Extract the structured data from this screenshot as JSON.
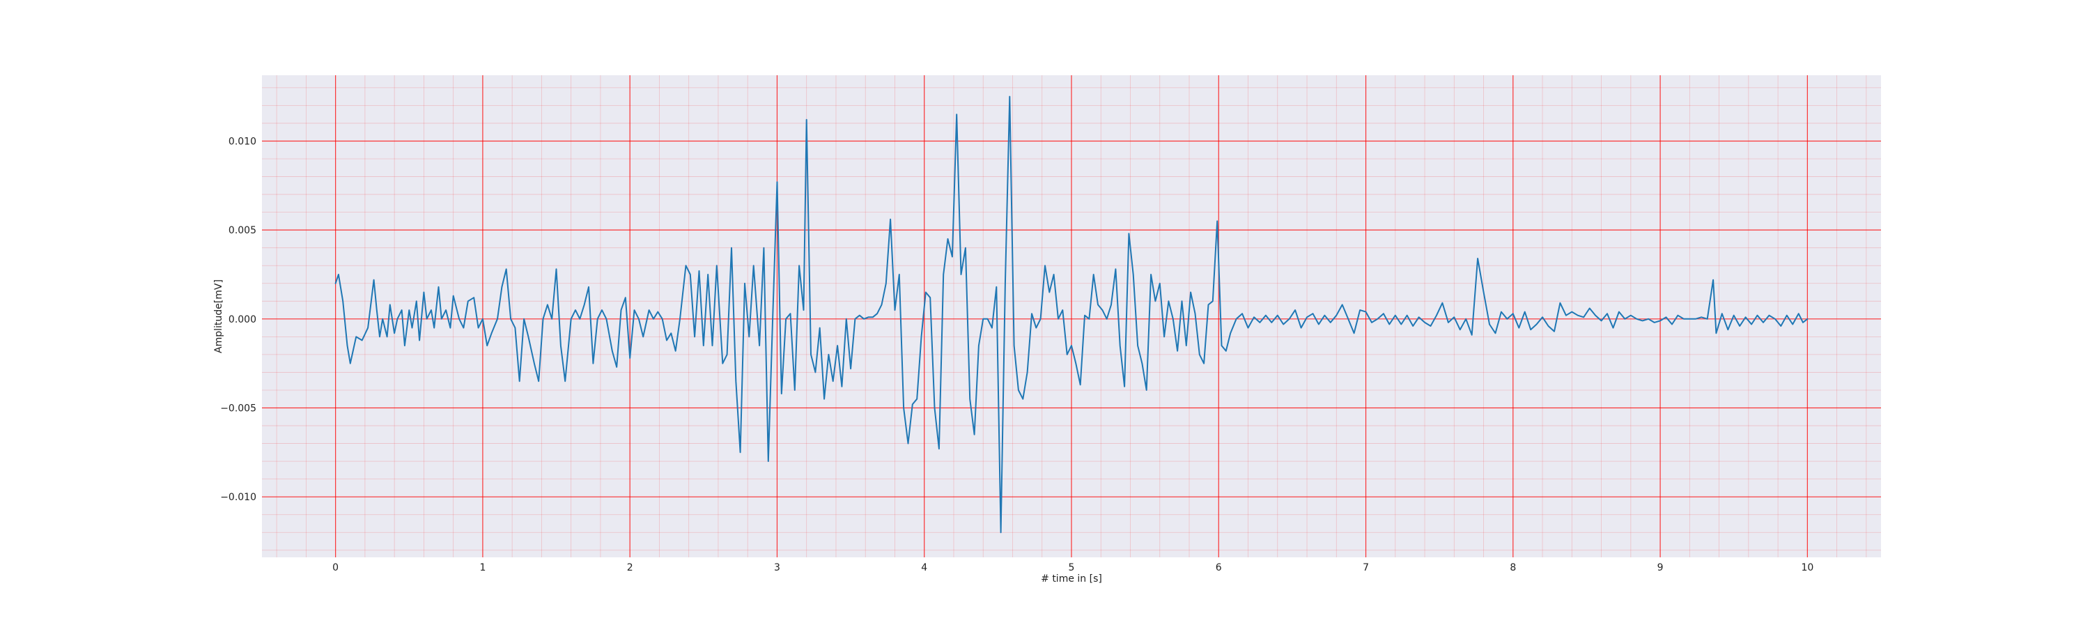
{
  "chart_data": {
    "type": "line",
    "xlabel": "# time in [s]",
    "ylabel": "Amplitude[mV]",
    "xlim": [
      -0.5,
      10.5
    ],
    "ylim": [
      -0.0134,
      0.0137
    ],
    "xticks": [
      0,
      1,
      2,
      3,
      4,
      5,
      6,
      7,
      8,
      9,
      10
    ],
    "xtick_labels": [
      "0",
      "1",
      "2",
      "3",
      "4",
      "5",
      "6",
      "7",
      "8",
      "9",
      "10"
    ],
    "yticks": [
      -0.01,
      -0.005,
      0.0,
      0.005,
      0.01
    ],
    "ytick_labels": [
      "−0.010",
      "−0.005",
      "0.000",
      "0.005",
      "0.010"
    ],
    "grid": {
      "major": true,
      "minor": true
    },
    "background": "#eaeaf2",
    "grid_color": "#ff0000",
    "series": [
      {
        "color": "#1f77b4",
        "x": [
          0.0,
          0.02,
          0.05,
          0.08,
          0.1,
          0.14,
          0.18,
          0.22,
          0.26,
          0.28,
          0.3,
          0.32,
          0.35,
          0.37,
          0.4,
          0.42,
          0.45,
          0.47,
          0.5,
          0.52,
          0.55,
          0.57,
          0.6,
          0.62,
          0.65,
          0.67,
          0.7,
          0.72,
          0.75,
          0.78,
          0.8,
          0.84,
          0.87,
          0.9,
          0.94,
          0.97,
          1.0,
          1.03,
          1.06,
          1.1,
          1.13,
          1.16,
          1.19,
          1.22,
          1.25,
          1.28,
          1.31,
          1.35,
          1.38,
          1.41,
          1.44,
          1.47,
          1.5,
          1.53,
          1.56,
          1.6,
          1.63,
          1.66,
          1.69,
          1.72,
          1.75,
          1.78,
          1.81,
          1.84,
          1.88,
          1.91,
          1.94,
          1.97,
          2.0,
          2.03,
          2.06,
          2.09,
          2.13,
          2.16,
          2.19,
          2.22,
          2.25,
          2.28,
          2.31,
          2.34,
          2.38,
          2.41,
          2.44,
          2.47,
          2.5,
          2.53,
          2.56,
          2.59,
          2.63,
          2.66,
          2.69,
          2.72,
          2.75,
          2.78,
          2.81,
          2.84,
          2.88,
          2.91,
          2.94,
          2.97,
          3.0,
          3.03,
          3.06,
          3.09,
          3.12,
          3.15,
          3.18,
          3.2,
          3.23,
          3.26,
          3.29,
          3.32,
          3.35,
          3.38,
          3.41,
          3.44,
          3.47,
          3.5,
          3.53,
          3.56,
          3.59,
          3.62,
          3.65,
          3.68,
          3.71,
          3.74,
          3.77,
          3.8,
          3.83,
          3.86,
          3.89,
          3.92,
          3.95,
          3.98,
          4.01,
          4.04,
          4.07,
          4.1,
          4.13,
          4.16,
          4.19,
          4.22,
          4.25,
          4.28,
          4.31,
          4.34,
          4.37,
          4.4,
          4.43,
          4.46,
          4.49,
          4.52,
          4.55,
          4.58,
          4.61,
          4.64,
          4.67,
          4.7,
          4.73,
          4.76,
          4.79,
          4.82,
          4.85,
          4.88,
          4.91,
          4.94,
          4.97,
          5.0,
          5.03,
          5.06,
          5.09,
          5.12,
          5.15,
          5.18,
          5.21,
          5.24,
          5.27,
          5.3,
          5.33,
          5.36,
          5.39,
          5.42,
          5.45,
          5.48,
          5.51,
          5.54,
          5.57,
          5.6,
          5.63,
          5.66,
          5.69,
          5.72,
          5.75,
          5.78,
          5.81,
          5.84,
          5.87,
          5.9,
          5.93,
          5.96,
          5.99,
          6.02,
          6.05,
          6.08,
          6.12,
          6.16,
          6.2,
          6.24,
          6.28,
          6.32,
          6.36,
          6.4,
          6.44,
          6.48,
          6.52,
          6.56,
          6.6,
          6.64,
          6.68,
          6.72,
          6.76,
          6.8,
          6.84,
          6.88,
          6.92,
          6.96,
          7.0,
          7.04,
          7.08,
          7.12,
          7.16,
          7.2,
          7.24,
          7.28,
          7.32,
          7.36,
          7.4,
          7.44,
          7.48,
          7.52,
          7.56,
          7.6,
          7.64,
          7.68,
          7.72,
          7.76,
          7.8,
          7.84,
          7.88,
          7.92,
          7.96,
          8.0,
          8.04,
          8.08,
          8.12,
          8.16,
          8.2,
          8.24,
          8.28,
          8.32,
          8.36,
          8.4,
          8.44,
          8.48,
          8.52,
          8.56,
          8.6,
          8.64,
          8.68,
          8.72,
          8.76,
          8.8,
          8.84,
          8.88,
          8.92,
          8.96,
          9.0,
          9.04,
          9.08,
          9.12,
          9.16,
          9.2,
          9.24,
          9.28,
          9.32,
          9.36,
          9.38,
          9.42,
          9.46,
          9.5,
          9.54,
          9.58,
          9.62,
          9.66,
          9.7,
          9.74,
          9.78,
          9.82,
          9.86,
          9.9,
          9.94,
          9.97,
          10.0
        ],
        "y": [
          0.002,
          0.0025,
          0.001,
          -0.0015,
          -0.0025,
          -0.001,
          -0.0012,
          -0.0005,
          0.0022,
          0.0005,
          -0.001,
          0.0,
          -0.001,
          0.0008,
          -0.0008,
          0.0,
          0.0005,
          -0.0015,
          0.0005,
          -0.0005,
          0.001,
          -0.0012,
          0.0015,
          0.0,
          0.0005,
          -0.0005,
          0.0018,
          0.0,
          0.0005,
          -0.0005,
          0.0013,
          0.0,
          -0.0005,
          0.001,
          0.0012,
          -0.0005,
          0.0,
          -0.0015,
          -0.0008,
          0.0,
          0.0018,
          0.0028,
          0.0,
          -0.0005,
          -0.0035,
          0.0,
          -0.001,
          -0.0025,
          -0.0035,
          0.0,
          0.0008,
          0.0,
          0.0028,
          -0.0015,
          -0.0035,
          0.0,
          0.0005,
          0.0,
          0.0008,
          0.0018,
          -0.0025,
          0.0,
          0.0005,
          0.0,
          -0.0018,
          -0.0027,
          0.0005,
          0.0012,
          -0.0022,
          0.0005,
          0.0,
          -0.001,
          0.0005,
          0.0,
          0.0004,
          0.0,
          -0.0012,
          -0.0008,
          -0.0018,
          0.0,
          0.003,
          0.0025,
          -0.001,
          0.0027,
          -0.0015,
          0.0025,
          -0.0015,
          0.003,
          -0.0025,
          -0.002,
          0.004,
          -0.0035,
          -0.0075,
          0.002,
          -0.001,
          0.003,
          -0.0015,
          0.004,
          -0.008,
          0.0,
          0.0077,
          -0.0042,
          0.0,
          0.0003,
          -0.004,
          0.003,
          0.0005,
          0.0112,
          -0.002,
          -0.003,
          -0.0005,
          -0.0045,
          -0.002,
          -0.0035,
          -0.0015,
          -0.0038,
          0.0,
          -0.0028,
          0.0,
          0.0002,
          0.0,
          0.0001,
          0.0001,
          0.0003,
          0.0008,
          0.002,
          0.0056,
          0.0005,
          0.0025,
          -0.005,
          -0.007,
          -0.0048,
          -0.0045,
          -0.001,
          0.0015,
          0.0012,
          -0.005,
          -0.0073,
          0.0025,
          0.0045,
          0.0035,
          0.0115,
          0.0025,
          0.004,
          -0.0045,
          -0.0065,
          -0.0015,
          0.0,
          0.0,
          -0.0005,
          0.0018,
          -0.012,
          0.002,
          0.0125,
          -0.0015,
          -0.004,
          -0.0045,
          -0.003,
          0.0003,
          -0.0005,
          0.0,
          0.003,
          0.0015,
          0.0025,
          0.0,
          0.0005,
          -0.002,
          -0.0015,
          -0.0025,
          -0.0037,
          0.0002,
          0.0,
          0.0025,
          0.0008,
          0.0005,
          0.0,
          0.0008,
          0.0028,
          -0.0015,
          -0.0038,
          0.0048,
          0.0025,
          -0.0015,
          -0.0025,
          -0.004,
          0.0025,
          0.001,
          0.002,
          -0.001,
          0.001,
          0.0,
          -0.0018,
          0.001,
          -0.0015,
          0.0015,
          0.0003,
          -0.002,
          -0.0025,
          0.0008,
          0.001,
          0.0055,
          -0.0015,
          -0.0018,
          -0.0008,
          0.0,
          0.0003,
          -0.0005,
          0.0001,
          -0.0002,
          0.0002,
          -0.0002,
          0.0002,
          -0.0003,
          0.0,
          0.0005,
          -0.0005,
          0.0001,
          0.0003,
          -0.0003,
          0.0002,
          -0.0002,
          0.0002,
          0.0008,
          0.0,
          -0.0008,
          0.0005,
          0.0004,
          -0.0002,
          0.0,
          0.0003,
          -0.0003,
          0.0002,
          -0.0003,
          0.0002,
          -0.0004,
          0.0001,
          -0.0002,
          -0.0004,
          0.0002,
          0.0009,
          -0.0002,
          0.0001,
          -0.0006,
          0.0,
          -0.0009,
          0.0034,
          0.0015,
          -0.0003,
          -0.0008,
          0.0004,
          0.0,
          0.0003,
          -0.0005,
          0.0004,
          -0.0006,
          -0.0003,
          0.0001,
          -0.0004,
          -0.0007,
          0.0009,
          0.0002,
          0.0004,
          0.0002,
          0.0001,
          0.0006,
          0.0002,
          -0.0001,
          0.0003,
          -0.0005,
          0.0004,
          0.0,
          0.0002,
          0.0,
          -0.0001,
          0.0,
          -0.0002,
          -0.0001,
          0.0001,
          -0.0003,
          0.0002,
          0.0,
          0.0,
          0.0,
          0.0001,
          0.0,
          0.0022,
          -0.0008,
          0.0003,
          -0.0006,
          0.0002,
          -0.0004,
          0.0001,
          -0.0003,
          0.0002,
          -0.0002,
          0.0002,
          0.0,
          -0.0004,
          0.0002,
          -0.0003,
          0.0003,
          -0.0002,
          0.0
        ]
      }
    ]
  }
}
